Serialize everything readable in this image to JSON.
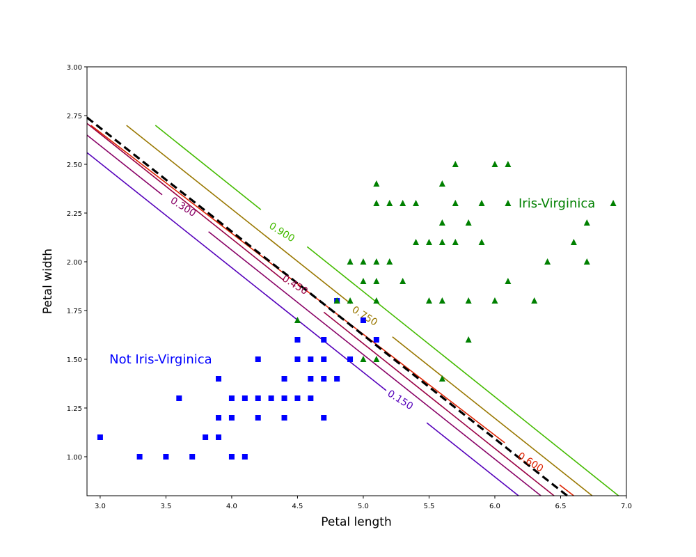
{
  "chart_data": {
    "type": "scatter",
    "xlabel": "Petal length",
    "ylabel": "Petal width",
    "xlim": [
      2.9,
      7.0
    ],
    "ylim": [
      0.8,
      3.0
    ],
    "xticks": [
      "3.0",
      "3.5",
      "4.0",
      "4.5",
      "5.0",
      "5.5",
      "6.0",
      "6.5",
      "7.0"
    ],
    "yticks": [
      "1.00",
      "1.25",
      "1.50",
      "1.75",
      "2.00",
      "2.25",
      "2.50",
      "2.75",
      "3.00"
    ],
    "grid": false,
    "series": [
      {
        "label": "Not Iris-Virginica",
        "marker": "square",
        "color": "#0000ff",
        "points": [
          [
            3.0,
            1.1
          ],
          [
            3.3,
            1.0
          ],
          [
            3.5,
            1.0
          ],
          [
            3.6,
            1.3
          ],
          [
            3.7,
            1.0
          ],
          [
            3.8,
            1.1
          ],
          [
            3.9,
            1.1
          ],
          [
            3.9,
            1.2
          ],
          [
            3.9,
            1.4
          ],
          [
            4.0,
            1.0
          ],
          [
            4.0,
            1.2
          ],
          [
            4.0,
            1.3
          ],
          [
            4.1,
            1.0
          ],
          [
            4.1,
            1.3
          ],
          [
            4.2,
            1.2
          ],
          [
            4.2,
            1.3
          ],
          [
            4.2,
            1.5
          ],
          [
            4.3,
            1.3
          ],
          [
            4.4,
            1.2
          ],
          [
            4.4,
            1.3
          ],
          [
            4.4,
            1.4
          ],
          [
            4.5,
            1.3
          ],
          [
            4.5,
            1.5
          ],
          [
            4.5,
            1.6
          ],
          [
            4.6,
            1.3
          ],
          [
            4.6,
            1.4
          ],
          [
            4.6,
            1.5
          ],
          [
            4.7,
            1.2
          ],
          [
            4.7,
            1.4
          ],
          [
            4.7,
            1.5
          ],
          [
            4.7,
            1.6
          ],
          [
            4.8,
            1.4
          ],
          [
            4.8,
            1.8
          ],
          [
            4.9,
            1.5
          ],
          [
            5.0,
            1.7
          ],
          [
            5.1,
            1.6
          ]
        ]
      },
      {
        "label": "Iris-Virginica",
        "marker": "triangle",
        "color": "#008000",
        "points": [
          [
            4.5,
            1.7
          ],
          [
            4.8,
            1.8
          ],
          [
            4.9,
            1.8
          ],
          [
            4.9,
            2.0
          ],
          [
            5.0,
            1.5
          ],
          [
            5.0,
            1.9
          ],
          [
            5.0,
            2.0
          ],
          [
            5.1,
            1.5
          ],
          [
            5.1,
            1.8
          ],
          [
            5.1,
            1.9
          ],
          [
            5.1,
            2.0
          ],
          [
            5.1,
            2.3
          ],
          [
            5.1,
            2.4
          ],
          [
            5.2,
            2.0
          ],
          [
            5.2,
            2.3
          ],
          [
            5.3,
            1.9
          ],
          [
            5.3,
            2.3
          ],
          [
            5.4,
            2.1
          ],
          [
            5.4,
            2.3
          ],
          [
            5.5,
            1.8
          ],
          [
            5.5,
            2.1
          ],
          [
            5.6,
            1.4
          ],
          [
            5.6,
            1.8
          ],
          [
            5.6,
            2.1
          ],
          [
            5.6,
            2.2
          ],
          [
            5.6,
            2.4
          ],
          [
            5.7,
            2.1
          ],
          [
            5.7,
            2.3
          ],
          [
            5.7,
            2.5
          ],
          [
            5.8,
            1.6
          ],
          [
            5.8,
            1.8
          ],
          [
            5.8,
            2.2
          ],
          [
            5.9,
            2.1
          ],
          [
            5.9,
            2.3
          ],
          [
            6.0,
            1.8
          ],
          [
            6.0,
            2.5
          ],
          [
            6.1,
            1.9
          ],
          [
            6.1,
            2.3
          ],
          [
            6.1,
            2.5
          ],
          [
            6.3,
            1.8
          ],
          [
            6.4,
            2.0
          ],
          [
            6.6,
            2.1
          ],
          [
            6.7,
            2.0
          ],
          [
            6.7,
            2.2
          ],
          [
            6.9,
            2.3
          ]
        ]
      }
    ],
    "contours": [
      {
        "label": "0.150",
        "color": "#5500bb",
        "x0": 2.9,
        "y0": 2.56,
        "x1": 6.18,
        "y1": 0.8,
        "label_at": [
          5.28,
          1.29
        ],
        "label_angle": 32,
        "label_gap": [
          0.12,
          0.23
        ]
      },
      {
        "label": "0.300",
        "color": "#880066",
        "x0": 2.9,
        "y0": 2.65,
        "x1": 6.35,
        "y1": 0.8,
        "label_at": [
          3.63,
          2.28
        ],
        "label_angle": 32,
        "label_gap": [
          0.18,
          0.22
        ]
      },
      {
        "label": "0.450",
        "color": "#990044",
        "x0": 2.9,
        "y0": 2.71,
        "x1": 6.45,
        "y1": 0.8,
        "label_at": [
          4.48,
          1.88
        ],
        "label_angle": 32,
        "label_gap": [
          0.1,
          0.25
        ]
      },
      {
        "label": "0.600",
        "color": "#dd2200",
        "x0": 2.93,
        "y0": 2.7,
        "x1": 6.6,
        "y1": 0.8,
        "label_at": [
          6.27,
          0.97
        ],
        "label_angle": 32,
        "label_gap": [
          0.22,
          0.25
        ]
      },
      {
        "label": "0.750",
        "color": "#997700",
        "x0": 3.2,
        "y0": 2.7,
        "x1": 6.74,
        "y1": 0.8,
        "label_at": [
          5.01,
          1.72
        ],
        "label_angle": 32,
        "label_gap": [
          0.12,
          0.24
        ]
      },
      {
        "label": "0.900",
        "color": "#44bb00",
        "x0": 3.42,
        "y0": 2.7,
        "x1": 6.94,
        "y1": 0.8,
        "label_at": [
          4.38,
          2.15
        ],
        "label_angle": 32,
        "label_gap": [
          0.18,
          0.22
        ]
      }
    ],
    "decision_boundary": {
      "color": "#000000",
      "style": "dashed",
      "x0": 2.9,
      "y0": 2.74,
      "x1": 6.55,
      "y1": 0.8
    },
    "annotations": [
      {
        "text": "Not Iris-Virginica",
        "x": 3.07,
        "y": 1.5,
        "color": "#0000ff"
      },
      {
        "text": "Iris-Virginica",
        "x": 6.18,
        "y": 2.3,
        "color": "#008000"
      }
    ]
  }
}
